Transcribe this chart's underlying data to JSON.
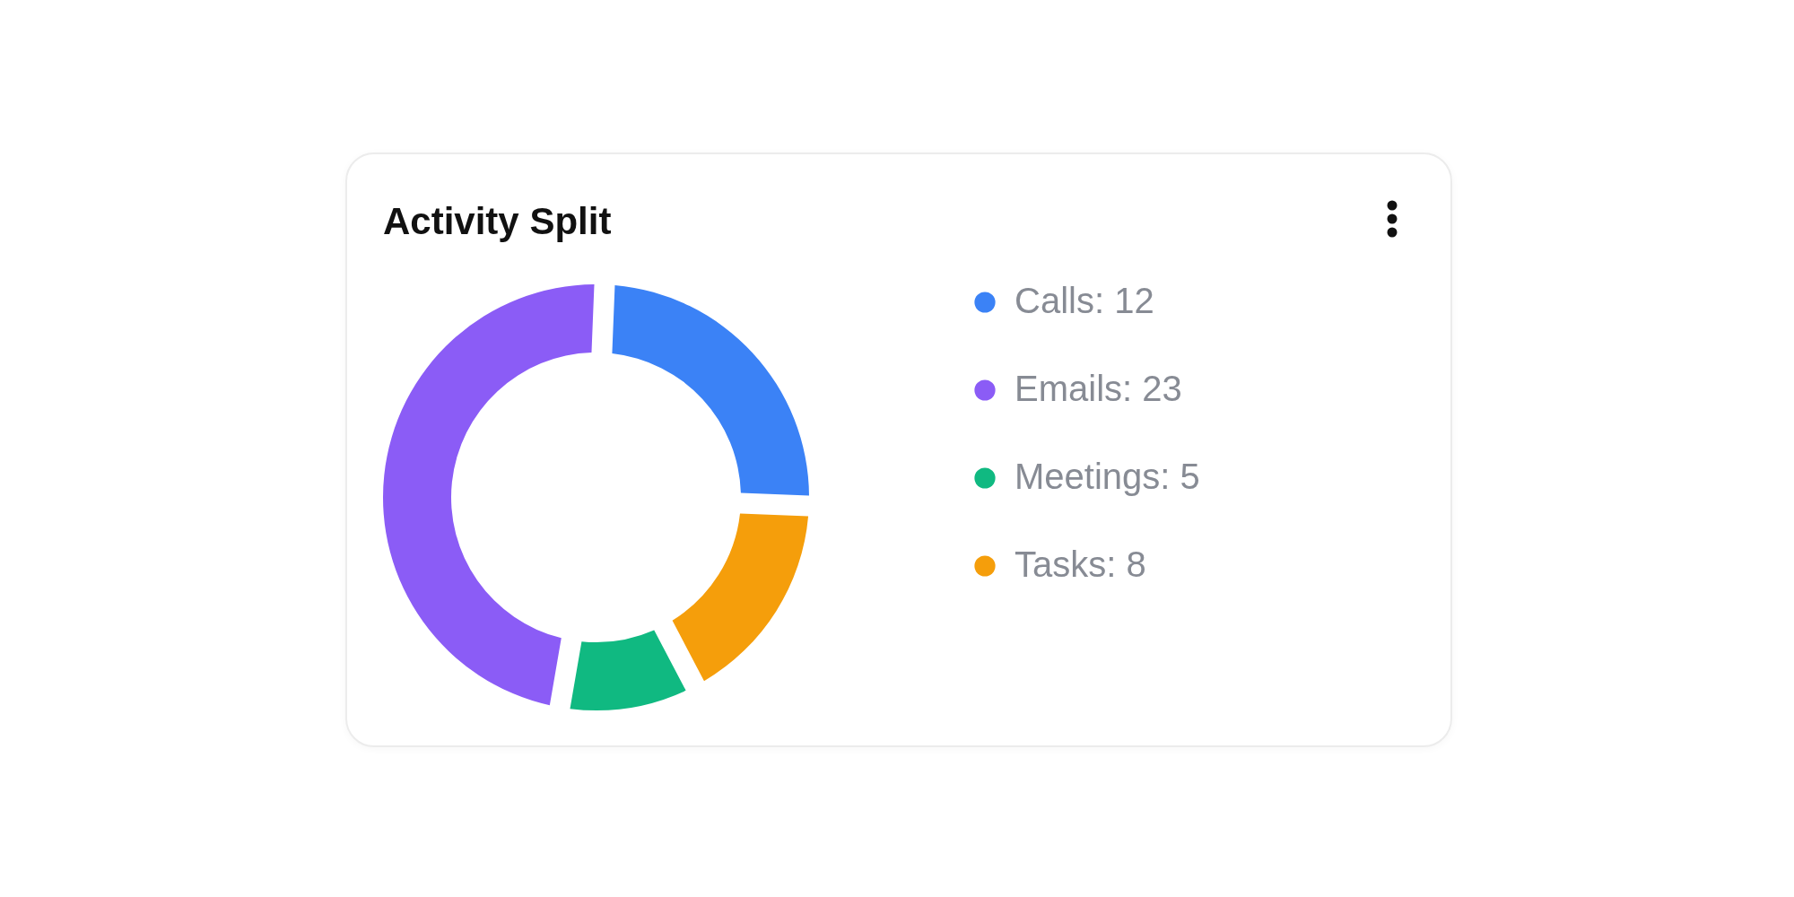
{
  "chart_data": {
    "type": "donut",
    "title": "Activity Split",
    "categories": [
      "Calls: 12",
      "Emails: 23",
      "Meetings: 5",
      "Tasks: 8"
    ],
    "values": [
      12,
      23,
      5,
      8
    ],
    "colors": [
      "#3b82f6",
      "#8b5cf6",
      "#10b981",
      "#f59e0b"
    ],
    "legend": "right"
  }
}
